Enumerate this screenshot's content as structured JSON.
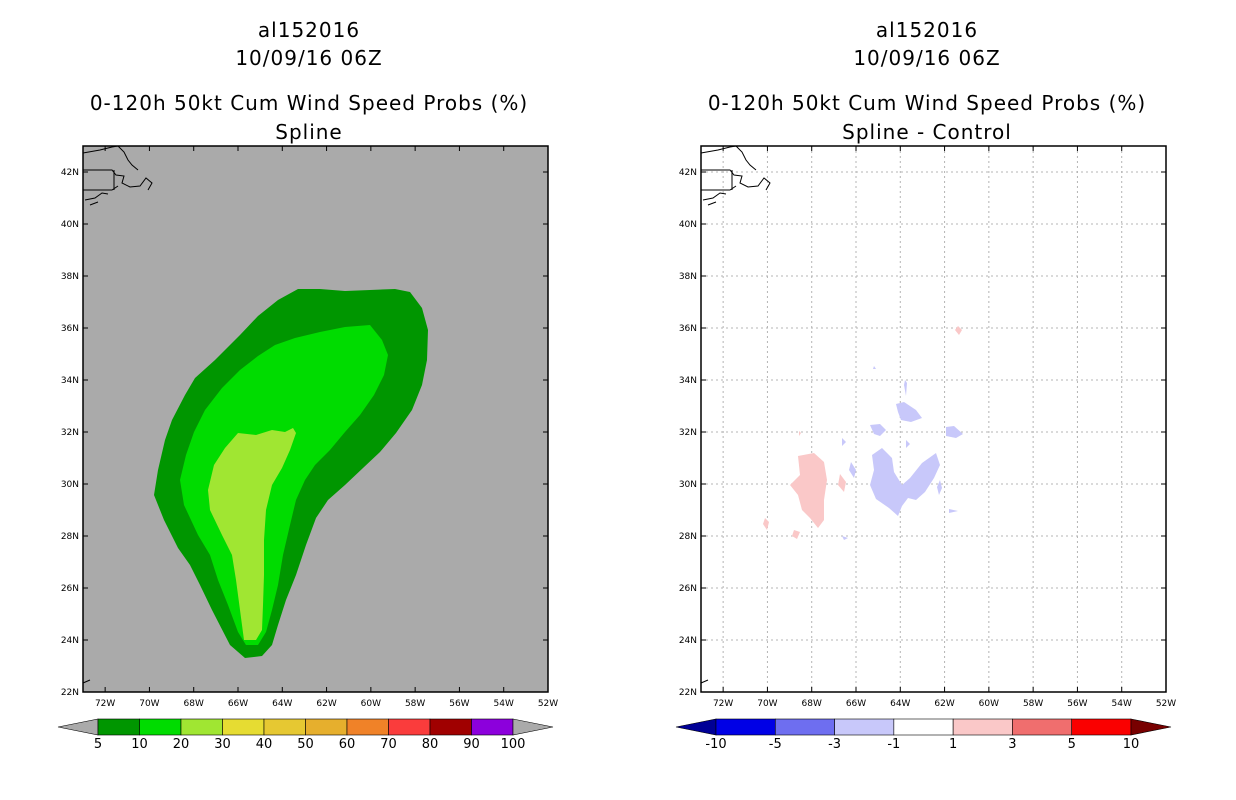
{
  "left_panel": {
    "storm_id": "al152016",
    "datetime": "10/09/16 06Z",
    "product": "0-120h 50kt Cum Wind Speed Probs (%)",
    "subtitle": "Spline",
    "background_color": "#aaaaaa",
    "colorbar": {
      "labels": [
        "5",
        "10",
        "20",
        "30",
        "40",
        "50",
        "60",
        "70",
        "80",
        "90",
        "100"
      ],
      "colors": [
        "#009600",
        "#00dc00",
        "#a0e632",
        "#e6dc32",
        "#e6c832",
        "#e6af2d",
        "#f08228",
        "#fa3c3c",
        "#a00000",
        "#8c00dc"
      ],
      "below_color": "#aaaaaa",
      "above_color": "#aaaaaa"
    }
  },
  "right_panel": {
    "storm_id": "al152016",
    "datetime": "10/09/16 06Z",
    "product": "0-120h 50kt Cum Wind Speed Probs (%)",
    "subtitle": "Spline - Control",
    "background_color": "#ffffff",
    "colorbar": {
      "labels": [
        "-10",
        "-5",
        "-3",
        "-1",
        "1",
        "3",
        "5",
        "10"
      ],
      "colors": [
        "#0000e6",
        "#6e6ef0",
        "#c8c8fa",
        "#ffffff",
        "#fac8c8",
        "#f06e6e",
        "#fa0000"
      ],
      "below_color": "#000096",
      "above_color": "#780000"
    }
  },
  "axes": {
    "lon_labels": [
      "72W",
      "70W",
      "68W",
      "66W",
      "64W",
      "62W",
      "60W",
      "58W",
      "56W",
      "54W",
      "52W"
    ],
    "lon_values": [
      -72,
      -70,
      -68,
      -66,
      -64,
      -62,
      -60,
      -58,
      -56,
      -54,
      -52
    ],
    "lat_labels": [
      "22N",
      "24N",
      "26N",
      "28N",
      "30N",
      "32N",
      "34N",
      "36N",
      "38N",
      "40N",
      "42N"
    ],
    "lat_values": [
      22,
      24,
      26,
      28,
      30,
      32,
      34,
      36,
      38,
      40,
      42
    ],
    "lon_range": [
      -73,
      -52
    ],
    "lat_range": [
      22,
      43
    ]
  }
}
